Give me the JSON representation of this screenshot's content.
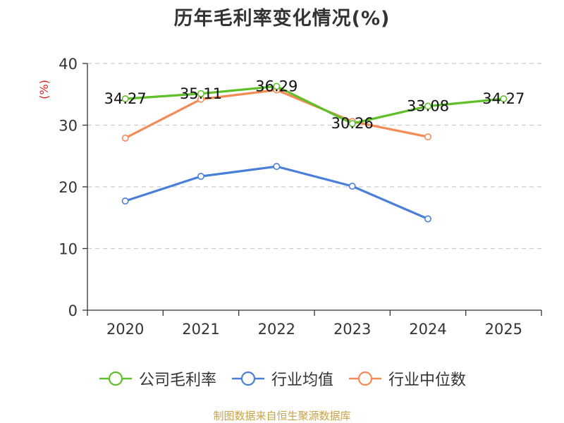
{
  "chart_data": {
    "type": "line",
    "title": "历年毛利率变化情况(%)",
    "ylabel": "(%)",
    "xlabel": "",
    "ylim": [
      0,
      40
    ],
    "yticks": [
      0,
      10,
      20,
      30,
      40
    ],
    "categories": [
      "2020",
      "2021",
      "2022",
      "2023",
      "2024",
      "2025"
    ],
    "series": [
      {
        "name": "公司毛利率",
        "color": "#5fc02a",
        "values": [
          34.27,
          35.11,
          36.29,
          30.26,
          33.08,
          34.27
        ],
        "labels": [
          "34.27",
          "35.11",
          "36.29",
          "30.26",
          "33.08",
          "34.27"
        ]
      },
      {
        "name": "行业均值",
        "color": "#4a7fd8",
        "values": [
          17.7,
          21.7,
          23.3,
          20.1,
          14.8,
          null
        ]
      },
      {
        "name": "行业中位数",
        "color": "#f48b55",
        "values": [
          27.9,
          34.2,
          35.7,
          30.6,
          28.1,
          null
        ]
      }
    ],
    "legend_position": "bottom",
    "grid": true,
    "source": "制图数据来自恒生聚源数据库"
  }
}
